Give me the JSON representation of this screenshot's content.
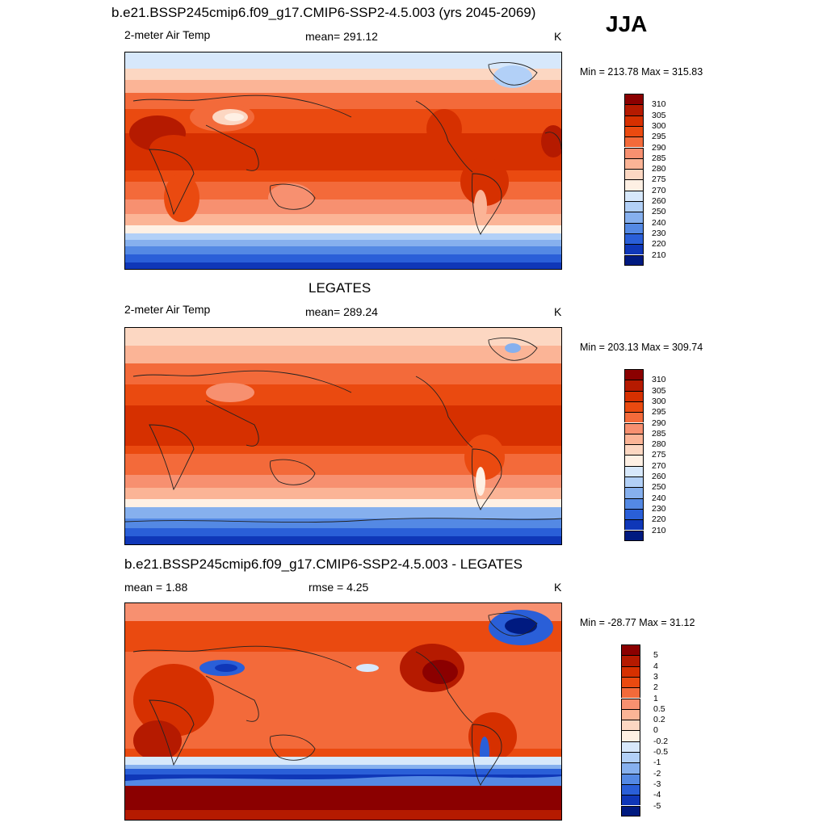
{
  "season": "JJA",
  "panels": [
    {
      "id": "model",
      "title": "b.e21.BSSP245cmip6.f09_g17.CMIP6-SSP2-4.5.003 (yrs 2045-2069)",
      "left": "2-meter Air Temp",
      "center": "mean= 291.12",
      "right": "K",
      "minmax": "Min = 213.78 Max = 315.83"
    },
    {
      "id": "obs",
      "title": "LEGATES",
      "left": "2-meter Air Temp",
      "center": "mean= 289.24",
      "right": "K",
      "minmax": "Min = 203.13 Max = 309.74"
    },
    {
      "id": "diff",
      "title": "b.e21.BSSP245cmip6.f09_g17.CMIP6-SSP2-4.5.003 - LEGATES",
      "left": "mean =   1.88",
      "center": "rmse =   4.25",
      "right": "K",
      "minmax": "Min = -28.77 Max =  31.12"
    }
  ],
  "chart_data": {
    "type": "heatmap",
    "colorbars": [
      {
        "panel": "model",
        "levels": [
          "310",
          "305",
          "300",
          "295",
          "290",
          "285",
          "280",
          "275",
          "270",
          "260",
          "250",
          "240",
          "230",
          "220",
          "210"
        ],
        "colors": [
          "#8b0000",
          "#b51a00",
          "#d63000",
          "#ea4a10",
          "#f36a3a",
          "#f79070",
          "#fbb496",
          "#fcd7c2",
          "#fef0e4",
          "#d7e8fb",
          "#b2d0f7",
          "#86b0ee",
          "#5489e4",
          "#2a5fd8",
          "#0f37b8",
          "#001a80"
        ]
      },
      {
        "panel": "obs",
        "levels": [
          "310",
          "305",
          "300",
          "295",
          "290",
          "285",
          "280",
          "275",
          "270",
          "260",
          "250",
          "240",
          "230",
          "220",
          "210"
        ],
        "colors": [
          "#8b0000",
          "#b51a00",
          "#d63000",
          "#ea4a10",
          "#f36a3a",
          "#f79070",
          "#fbb496",
          "#fcd7c2",
          "#fef0e4",
          "#d7e8fb",
          "#b2d0f7",
          "#86b0ee",
          "#5489e4",
          "#2a5fd8",
          "#0f37b8",
          "#001a80"
        ]
      },
      {
        "panel": "diff",
        "levels": [
          "5",
          "4",
          "3",
          "2",
          "1",
          "0.5",
          "0.2",
          "0",
          "-0.2",
          "-0.5",
          "-1",
          "-2",
          "-3",
          "-4",
          "-5"
        ],
        "colors": [
          "#8b0000",
          "#b51a00",
          "#d63000",
          "#ea4a10",
          "#f36a3a",
          "#f79070",
          "#fbb496",
          "#fcd7c2",
          "#fef0e4",
          "#d7e8fb",
          "#b2d0f7",
          "#86b0ee",
          "#5489e4",
          "#2a5fd8",
          "#0f37b8",
          "#001a80"
        ]
      }
    ]
  }
}
